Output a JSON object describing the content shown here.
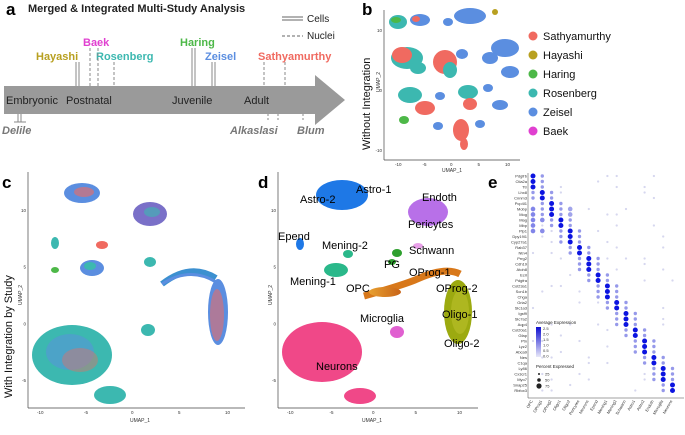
{
  "panels": {
    "a": {
      "letter": "a",
      "title": "Merged & Integrated Multi-Study Analysis",
      "legend": {
        "cells": "Cells",
        "nuclei": "Nuclei"
      },
      "stages": [
        "Embryonic",
        "Postnatal",
        "Juvenile",
        "Adult"
      ],
      "studies_above": [
        {
          "name": "Baek",
          "color": "#e040d0"
        },
        {
          "name": "Hayashi",
          "color": "#b8a020"
        },
        {
          "name": "Rosenberg",
          "color": "#3cb8b0"
        },
        {
          "name": "Haring",
          "color": "#4db848"
        },
        {
          "name": "Zeisel",
          "color": "#5b8ee0"
        },
        {
          "name": "Sathyamurthy",
          "color": "#f06a60"
        }
      ],
      "studies_below": [
        "Delile",
        "Alkaslasi",
        "Blum"
      ]
    },
    "b": {
      "letter": "b",
      "ylabel": "Without Integration",
      "xaxis": "UMAP_1",
      "yaxis": "UMAP_2",
      "xticks": [
        "-10",
        "-5",
        "0",
        "5",
        "10"
      ],
      "yticks": [
        "10",
        "0",
        "-10"
      ],
      "legend": [
        {
          "label": "Sathyamurthy",
          "color": "#f06a60"
        },
        {
          "label": "Hayashi",
          "color": "#b8a020"
        },
        {
          "label": "Haring",
          "color": "#4db848"
        },
        {
          "label": "Rosenberg",
          "color": "#3cb8b0"
        },
        {
          "label": "Zeisel",
          "color": "#5b8ee0"
        },
        {
          "label": "Baek",
          "color": "#e040d0"
        }
      ]
    },
    "c": {
      "letter": "c",
      "ylabel": "With Integration by Study",
      "xaxis": "UMAP_1",
      "yaxis": "UMAP_2",
      "xticks": [
        "-10",
        "-5",
        "0",
        "5",
        "10"
      ],
      "yticks": [
        "10",
        "5",
        "0",
        "-5"
      ]
    },
    "d": {
      "letter": "d",
      "xaxis": "UMAP_1",
      "yaxis": "UMAP_2",
      "xticks": [
        "-10",
        "-5",
        "0",
        "5",
        "10"
      ],
      "yticks": [
        "10",
        "5",
        "0",
        "-5"
      ],
      "labels": [
        "Astro-2",
        "Astro-1",
        "Endoth",
        "Pericytes",
        "Epend",
        "Mening-2",
        "Schwann",
        "PG",
        "Mening-1",
        "OProg-1",
        "OPC",
        "OProg-2",
        "Microglia",
        "Oligo-1",
        "Oligo-2",
        "Neurons"
      ]
    },
    "e": {
      "letter": "e",
      "genes": [
        "Pdgfrb",
        "Ctla2a",
        "Ttr",
        "Lhx8",
        "Cnnm3",
        "Pcp4l1",
        "Mobp",
        "Mog",
        "Mag",
        "Mbp",
        "Plp1",
        "Dpy19l1",
        "Cyp27a1",
        "Rab37",
        "Ntn4",
        "Prrg2",
        "Cdh19",
        "Atoh8",
        "Ecrl",
        "Pdgfra",
        "Col23a1",
        "Scn1b",
        "Chga",
        "Gria2",
        "Slc1a3",
        "Igsf9",
        "Slc7a2",
        "Aqp4",
        "Col20a1",
        "Gfap",
        "Ptn",
        "Lyz2",
        "Abca9",
        "Nes",
        "C1qa",
        "Ly86",
        "Cx3cr1",
        "Myo7",
        "Snap25",
        "Rbfox3"
      ],
      "clusters": [
        "OPC",
        "OProg1",
        "OProg2",
        "Oligo1",
        "Oligo2",
        "Pericytes",
        "Neurons",
        "Epend",
        "Mening1",
        "Mening2",
        "Schwann",
        "Astro1",
        "Astro2",
        "Endoth",
        "Microglia",
        "Neurons"
      ],
      "legend": {
        "avg_title": "Average Expression",
        "avg_ticks": [
          "2.5",
          "2.0",
          "1.5",
          "1.0",
          "0.5",
          "0.0"
        ],
        "pct_title": "Percent Expressed",
        "pct_values": [
          "25",
          "50",
          "75"
        ]
      },
      "colors": {
        "low": "#dcdcf0",
        "high": "#0a14e0"
      }
    }
  }
}
